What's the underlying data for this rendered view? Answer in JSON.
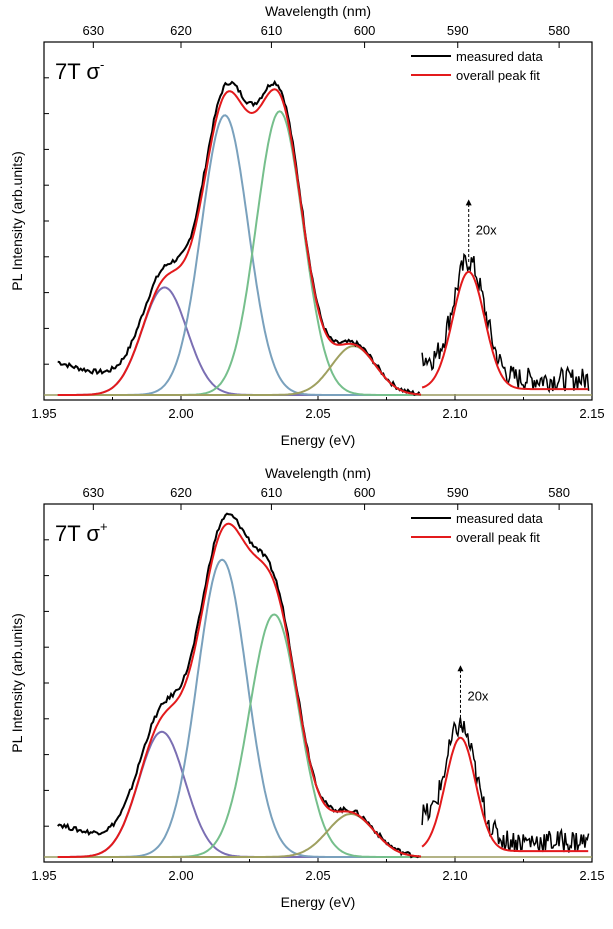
{
  "colors": {
    "measured": "#000000",
    "fit": "#e31a1c",
    "peak_violet": "#7b6fb3",
    "peak_blue": "#7aa1bd",
    "peak_green": "#76bf8c",
    "peak_olive": "#9fa060",
    "baseline": "#9a9a5e"
  },
  "chart_data": [
    {
      "type": "line",
      "annotation": "7T σ",
      "annotation_sup": "-",
      "xlabel": "Energy (eV)",
      "ylabel": "PL Intensity (arb.units)",
      "top_xlabel": "Wavelength (nm)",
      "xlim": [
        1.95,
        2.15
      ],
      "xticks": [
        "1.95",
        "2.00",
        "2.05",
        "2.10",
        "2.15"
      ],
      "top_ticks": [
        {
          "label": "630",
          "energy": 1.968
        },
        {
          "label": "620",
          "energy": 2.0
        },
        {
          "label": "610",
          "energy": 2.033
        },
        {
          "label": "600",
          "energy": 2.067
        },
        {
          "label": "590",
          "energy": 2.101
        },
        {
          "label": "580",
          "energy": 2.138
        }
      ],
      "ylim": [
        0,
        1
      ],
      "legend": {
        "position": "top-right",
        "entries": [
          "measured data",
          "overall peak fit"
        ]
      },
      "magnification_label": "20x",
      "magnification_start_energy": 2.088,
      "peaks": [
        {
          "center": 1.994,
          "amplitude": 0.275,
          "sigma": 0.0082,
          "color_key": "peak_violet"
        },
        {
          "center": 2.016,
          "amplitude": 0.715,
          "sigma": 0.0085,
          "color_key": "peak_blue"
        },
        {
          "center": 2.036,
          "amplitude": 0.725,
          "sigma": 0.0085,
          "color_key": "peak_green"
        },
        {
          "center": 2.063,
          "amplitude": 0.125,
          "sigma": 0.008,
          "color_key": "peak_olive"
        },
        {
          "center": 2.105,
          "amplitude": 0.3,
          "sigma": 0.0058,
          "color_key": "fit"
        }
      ]
    },
    {
      "type": "line",
      "annotation": "7T σ",
      "annotation_sup": "+",
      "xlabel": "Energy (eV)",
      "ylabel": "PL Intensity (arb.units)",
      "top_xlabel": "Wavelength (nm)",
      "xlim": [
        1.95,
        2.15
      ],
      "xticks": [
        "1.95",
        "2.00",
        "2.05",
        "2.10",
        "2.15"
      ],
      "top_ticks": [
        {
          "label": "630",
          "energy": 1.968
        },
        {
          "label": "620",
          "energy": 2.0
        },
        {
          "label": "610",
          "energy": 2.033
        },
        {
          "label": "600",
          "energy": 2.067
        },
        {
          "label": "590",
          "energy": 2.101
        },
        {
          "label": "580",
          "energy": 2.138
        }
      ],
      "ylim": [
        0,
        1
      ],
      "legend": {
        "position": "top-right",
        "entries": [
          "measured data",
          "overall peak fit"
        ]
      },
      "magnification_label": "20x",
      "magnification_start_energy": 2.088,
      "peaks": [
        {
          "center": 1.993,
          "amplitude": 0.32,
          "sigma": 0.0085,
          "color_key": "peak_violet"
        },
        {
          "center": 2.015,
          "amplitude": 0.76,
          "sigma": 0.009,
          "color_key": "peak_blue"
        },
        {
          "center": 2.034,
          "amplitude": 0.62,
          "sigma": 0.009,
          "color_key": "peak_green"
        },
        {
          "center": 2.062,
          "amplitude": 0.11,
          "sigma": 0.0085,
          "color_key": "peak_olive"
        },
        {
          "center": 2.102,
          "amplitude": 0.29,
          "sigma": 0.0055,
          "color_key": "fit"
        }
      ]
    }
  ]
}
